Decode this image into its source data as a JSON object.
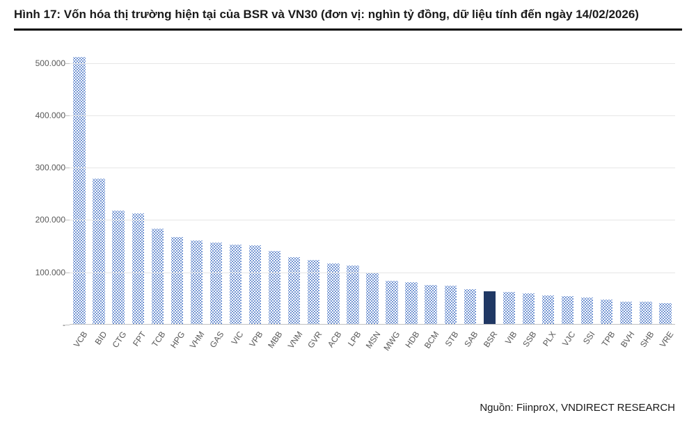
{
  "title": "Hình 17: Vốn hóa thị trường hiện tại của BSR và VN30 (đơn vị: nghìn tỷ đồng, dữ liệu tính đến ngày 14/02/2026)",
  "source": "Nguồn: FiinproX, VNDIRECT RESEARCH",
  "chart": {
    "type": "bar",
    "ylim": [
      0,
      525
    ],
    "ytick_step": 100000,
    "yticks": [
      0,
      100000,
      200000,
      300000,
      400000,
      500000
    ],
    "ytick_labels": [
      "-",
      "100.000",
      "200.000",
      "300.000",
      "400.000",
      "500.000"
    ],
    "background_color": "#ffffff",
    "grid_color": "#e6e6e6",
    "axis_color": "#bfbfbf",
    "label_color": "#595959",
    "label_fontsize": 12,
    "title_fontsize": 17,
    "bar_width": 0.62,
    "pattern_dot_color": "#4472c4",
    "highlight_color": "#203864",
    "categories": [
      "VCB",
      "BID",
      "CTG",
      "FPT",
      "TCB",
      "HPG",
      "VHM",
      "GAS",
      "VIC",
      "VPB",
      "MBB",
      "VNM",
      "GVR",
      "ACB",
      "LPB",
      "MSN",
      "MWG",
      "HDB",
      "BCM",
      "STB",
      "SAB",
      "BSR",
      "VIB",
      "SSB",
      "PLX",
      "VJC",
      "SSI",
      "TPB",
      "BVH",
      "SHB",
      "VRE"
    ],
    "values": [
      510000,
      278000,
      217000,
      211000,
      182000,
      166000,
      159000,
      155000,
      152000,
      150000,
      139000,
      127000,
      122000,
      116000,
      112000,
      97000,
      82000,
      80000,
      74000,
      73000,
      67000,
      62000,
      61000,
      58000,
      55000,
      53000,
      50000,
      47000,
      43000,
      42000,
      40000
    ],
    "highlight_index": 21,
    "x_label_rotation_deg": -55
  }
}
